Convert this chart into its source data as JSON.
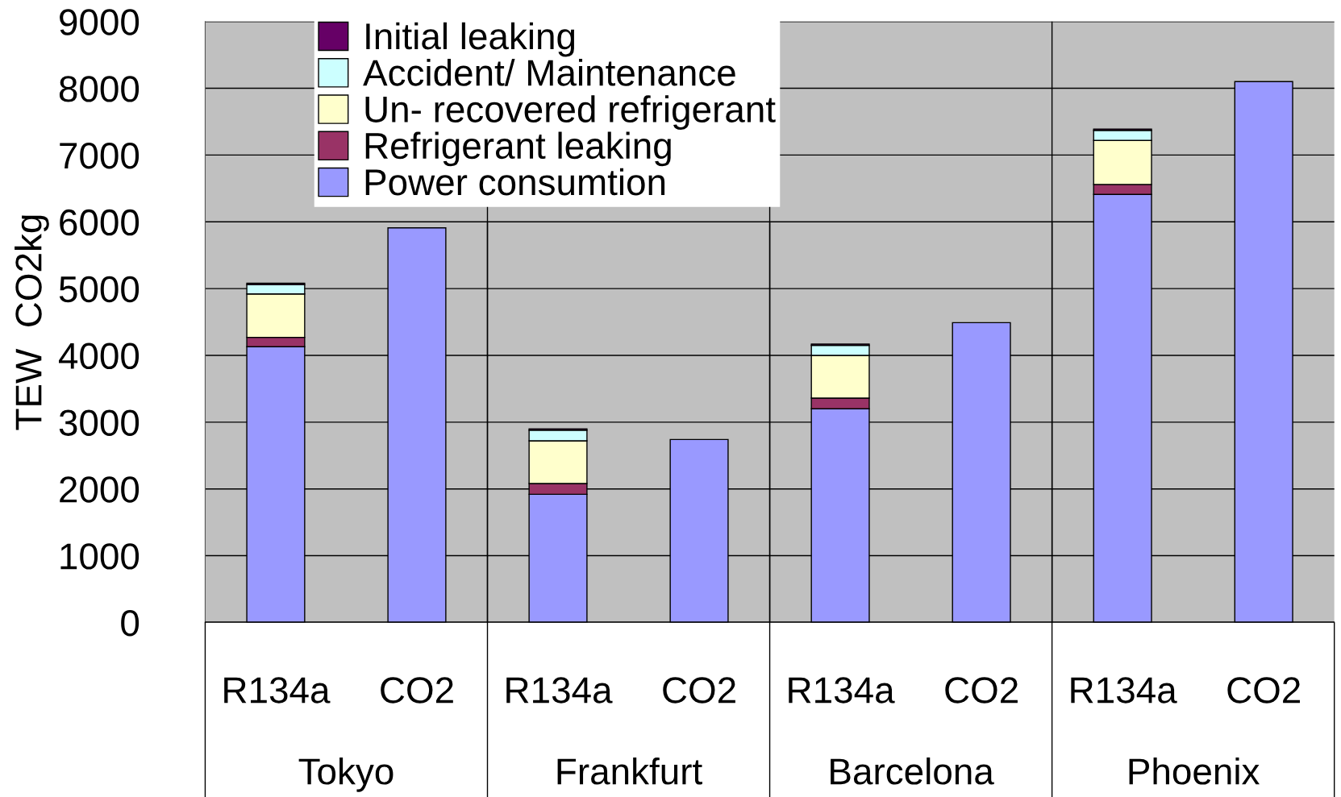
{
  "chart_data": {
    "type": "bar",
    "stacked": true,
    "ylabel": "TEW  CO2kg",
    "categories": [
      "R134a",
      "CO2",
      "R134a",
      "CO2",
      "R134a",
      "CO2",
      "R134a",
      "CO2"
    ],
    "annotations": [
      "Tokyo",
      "Frankfurt",
      "Barcelona",
      "Phoenix"
    ],
    "ylim": [
      0,
      9000
    ],
    "yticks": [
      0,
      1000,
      2000,
      3000,
      4000,
      5000,
      6000,
      7000,
      8000,
      9000
    ],
    "grid": "y",
    "legend": "top left",
    "series": [
      {
        "name": "Power consumtion",
        "color": "#9999ff",
        "values": [
          4130,
          5910,
          1920,
          2740,
          3200,
          4490,
          6410,
          8100
        ]
      },
      {
        "name": "Refrigerant leaking",
        "color": "#993366",
        "values": [
          140,
          null,
          160,
          null,
          160,
          null,
          150,
          null
        ]
      },
      {
        "name": "Un- recovered refrigerant",
        "color": "#ffffcc",
        "values": [
          650,
          null,
          640,
          null,
          640,
          null,
          660,
          null
        ]
      },
      {
        "name": "Accident/ Maintenance",
        "color": "#ccffff",
        "values": [
          140,
          null,
          160,
          null,
          150,
          null,
          150,
          null
        ]
      },
      {
        "name": "Initial leaking",
        "color": "#660066",
        "values": [
          20,
          null,
          20,
          null,
          20,
          null,
          20,
          null
        ]
      }
    ]
  }
}
